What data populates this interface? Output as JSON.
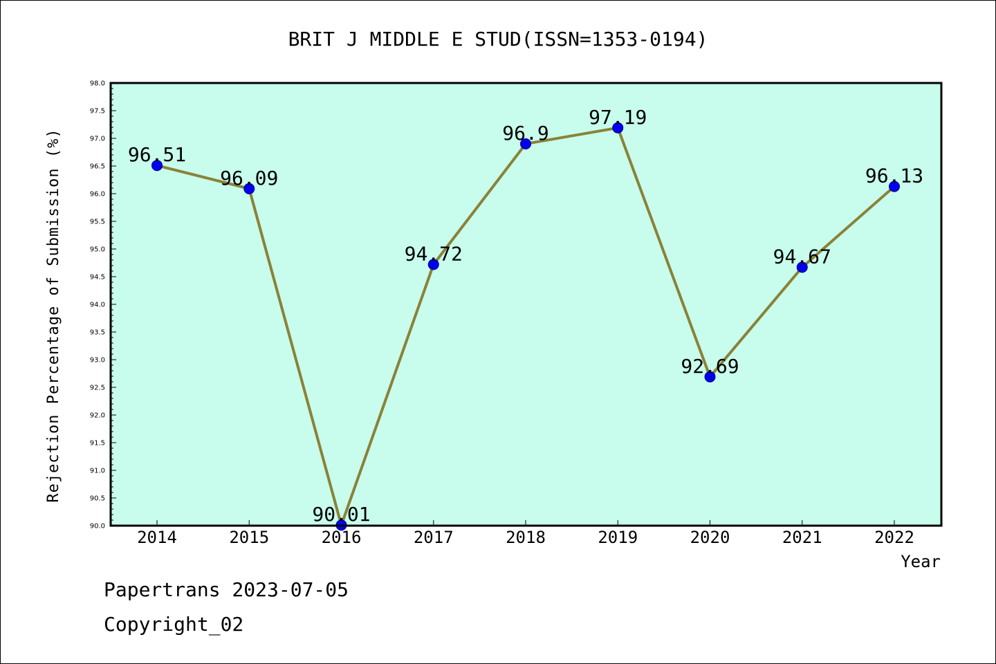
{
  "footer": {
    "line1": "Papertrans 2023-07-05",
    "line2": "Copyright_02"
  },
  "colors": {
    "plot_background": "#c8fcec",
    "line": "#8a8238",
    "marker": "#0000ee",
    "marker_edge": "#000080"
  },
  "chart_data": {
    "type": "line",
    "title": "BRIT J MIDDLE E STUD(ISSN=1353-0194)",
    "xlabel": "Year",
    "ylabel": "Rejection Percentage of Submission (%)",
    "categories": [
      "2014",
      "2015",
      "2016",
      "2017",
      "2018",
      "2019",
      "2020",
      "2021",
      "2022"
    ],
    "series": [
      {
        "values": [
          96.51,
          96.09,
          90.01,
          94.72,
          96.9,
          97.19,
          92.69,
          94.67,
          96.13
        ],
        "labels": [
          "96.51",
          "96.09",
          "90.01",
          "94.72",
          "96.9",
          "97.19",
          "92.69",
          "94.67",
          "96.13"
        ]
      }
    ],
    "ylim": [
      90.0,
      98.0
    ],
    "yticks": [
      "90.0",
      "90.5",
      "91.0",
      "91.5",
      "92.0",
      "92.5",
      "93.0",
      "93.5",
      "94.0",
      "94.5",
      "95.0",
      "95.5",
      "96.0",
      "96.5",
      "97.0",
      "97.5",
      "98.0"
    ],
    "grid": false,
    "legend": "none"
  }
}
